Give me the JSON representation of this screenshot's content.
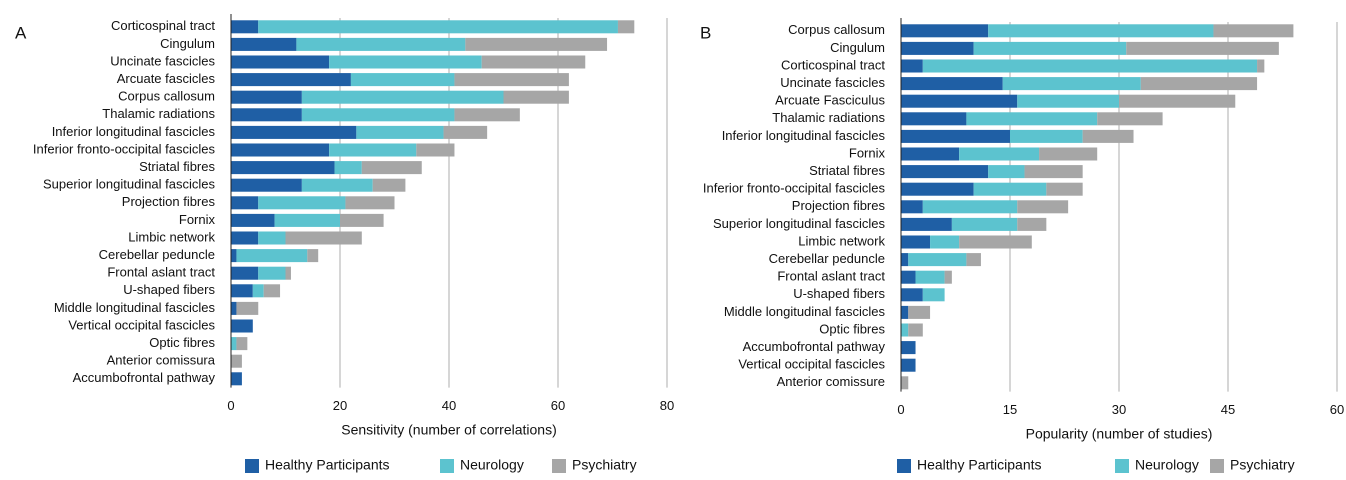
{
  "chart_data": [
    {
      "type": "bar",
      "panel_label": "A",
      "xlabel": "Sensitivity (number of correlations)",
      "categories": [
        "Corticospinal tract",
        "Cingulum",
        "Uncinate fascicles",
        "Arcuate fascicles",
        "Corpus callosum",
        "Thalamic radiations",
        "Inferior longitudinal fascicles",
        "Inferior fronto-occipital fascicles",
        "Striatal fibres",
        "Superior longitudinal fascicles",
        "Projection fibres",
        "Fornix",
        "Limbic network",
        "Cerebellar peduncle",
        "Frontal aslant tract",
        "U-shaped fibers",
        "Middle longitudinal fascicles",
        "Vertical occipital fascicles",
        "Optic fibres",
        "Anterior comissura",
        "Accumbofrontal pathway"
      ],
      "series": [
        {
          "name": "Healthy Participants",
          "color": "#1f5fa5",
          "values": [
            5,
            12,
            18,
            22,
            13,
            13,
            23,
            18,
            19,
            13,
            5,
            8,
            5,
            1,
            5,
            4,
            1,
            4,
            0,
            0,
            2
          ]
        },
        {
          "name": "Neurology",
          "color": "#5cc3cf",
          "values": [
            66,
            31,
            28,
            19,
            37,
            28,
            16,
            16,
            5,
            13,
            16,
            12,
            5,
            13,
            5,
            2,
            0,
            0,
            1,
            0,
            0
          ]
        },
        {
          "name": "Psychiatry",
          "color": "#a6a6a6",
          "values": [
            3,
            26,
            19,
            21,
            12,
            12,
            8,
            7,
            11,
            6,
            9,
            8,
            14,
            2,
            1,
            3,
            4,
            0,
            2,
            2,
            0
          ]
        }
      ],
      "xlim": [
        0,
        80
      ],
      "xticks": [
        0,
        20,
        40,
        60,
        80
      ],
      "grid": true,
      "stacked": true,
      "orientation": "horizontal"
    },
    {
      "type": "bar",
      "panel_label": "B",
      "xlabel": "Popularity (number of studies)",
      "categories": [
        "Corpus callosum",
        "Cingulum",
        "Corticospinal tract",
        "Uncinate fascicles",
        "Arcuate Fasciculus",
        "Thalamic radiations",
        "Inferior longitudinal fascicles",
        "Fornix",
        "Striatal fibres",
        "Inferior fronto-occipital fascicles",
        "Projection fibres",
        "Superior longitudinal fascicles",
        "Limbic network",
        "Cerebellar peduncle",
        "Frontal aslant tract",
        "U-shaped fibers",
        "Middle longitudinal fascicles",
        "Optic fibres",
        "Accumbofrontal pathway",
        "Vertical occipital fascicles",
        "Anterior comissure"
      ],
      "series": [
        {
          "name": "Healthy Participants",
          "color": "#1f5fa5",
          "values": [
            12,
            10,
            3,
            14,
            16,
            9,
            15,
            8,
            12,
            10,
            3,
            7,
            4,
            1,
            2,
            3,
            1,
            0,
            2,
            2,
            0
          ]
        },
        {
          "name": "Neurology",
          "color": "#5cc3cf",
          "values": [
            31,
            21,
            46,
            19,
            14,
            18,
            10,
            11,
            5,
            10,
            13,
            9,
            4,
            8,
            4,
            3,
            0,
            1,
            0,
            0,
            0
          ]
        },
        {
          "name": "Psychiatry",
          "color": "#a6a6a6",
          "values": [
            11,
            21,
            1,
            16,
            16,
            9,
            7,
            8,
            8,
            5,
            7,
            4,
            10,
            2,
            1,
            0,
            3,
            2,
            0,
            0,
            1
          ]
        }
      ],
      "xlim": [
        0,
        60
      ],
      "xticks": [
        0,
        15,
        30,
        45,
        60
      ],
      "grid": true,
      "stacked": true,
      "orientation": "horizontal"
    }
  ]
}
